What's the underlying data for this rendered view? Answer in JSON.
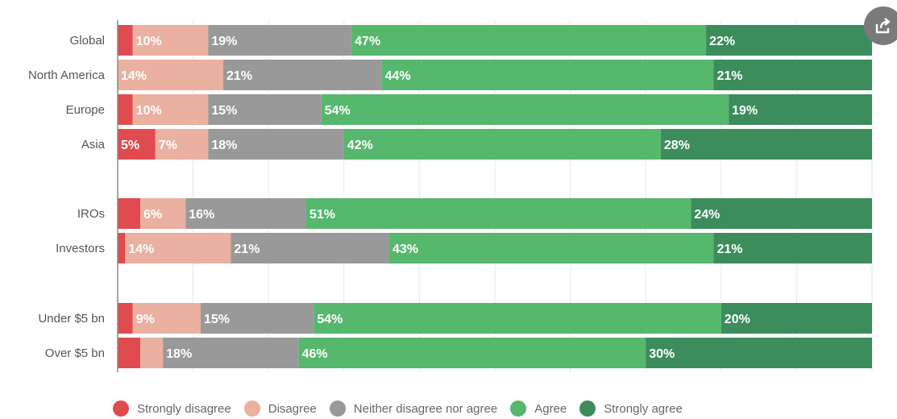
{
  "chart_data": {
    "type": "bar",
    "orientation": "horizontal",
    "stacked": true,
    "percent": true,
    "categories": [
      "Global",
      "North America",
      "Europe",
      "Asia",
      "IROs",
      "Investors",
      "Under $5 bn",
      "Over $5 bn"
    ],
    "group_breaks_after": [
      "Asia",
      "Investors"
    ],
    "series": [
      {
        "name": "Strongly disagree",
        "color": "#e04b4f",
        "values": [
          2,
          0,
          2,
          5,
          3,
          1,
          2,
          3
        ]
      },
      {
        "name": "Disagree",
        "color": "#eab0a0",
        "values": [
          10,
          14,
          10,
          7,
          6,
          14,
          9,
          3
        ]
      },
      {
        "name": "Neither disagree nor agree",
        "color": "#999999",
        "values": [
          19,
          21,
          15,
          18,
          16,
          21,
          15,
          18
        ]
      },
      {
        "name": "Agree",
        "color": "#55b86d",
        "values": [
          47,
          44,
          54,
          42,
          51,
          43,
          54,
          46
        ]
      },
      {
        "name": "Strongly agree",
        "color": "#3c8c5c",
        "values": [
          22,
          21,
          19,
          28,
          24,
          21,
          20,
          30
        ]
      }
    ],
    "data_labels": [
      [
        "",
        "10%",
        "19%",
        "47%",
        "22%"
      ],
      [
        "",
        "14%",
        "21%",
        "44%",
        "21%"
      ],
      [
        "",
        "10%",
        "15%",
        "54%",
        "19%"
      ],
      [
        "5%",
        "7%",
        "18%",
        "42%",
        "28%"
      ],
      [
        "",
        "6%",
        "16%",
        "51%",
        "24%"
      ],
      [
        "",
        "14%",
        "21%",
        "43%",
        "21%"
      ],
      [
        "",
        "9%",
        "15%",
        "54%",
        "20%"
      ],
      [
        "",
        "",
        "18%",
        "46%",
        "30%"
      ]
    ],
    "xlim": [
      0,
      100
    ],
    "grid": true,
    "legend_position": "bottom",
    "title": "",
    "xlabel": "",
    "ylabel": ""
  },
  "share": {
    "icon": "share-icon"
  }
}
